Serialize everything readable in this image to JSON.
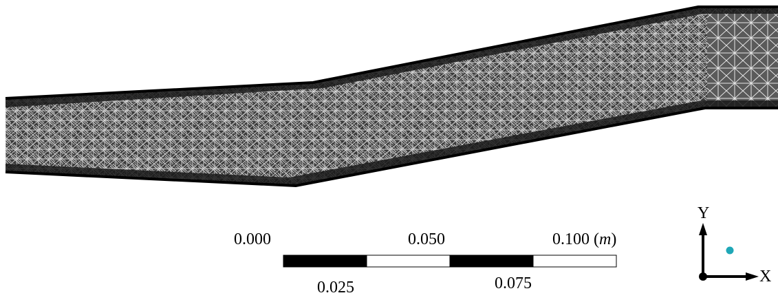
{
  "mesh": {
    "fill_color": "#3a3a3a",
    "line_color": "#d9d9d9",
    "wall_color": "#000000",
    "background": "#ffffff"
  },
  "scale_bar": {
    "top_labels": [
      "0.000",
      "0.050",
      "0.100"
    ],
    "unit_open": "(",
    "unit": "m",
    "unit_close": ")",
    "bottom_labels": [
      "0.025",
      "0.075"
    ],
    "segment_colors": [
      "#000000",
      "#ffffff",
      "#000000",
      "#ffffff"
    ]
  },
  "axes": {
    "x_label": "X",
    "y_label": "Y",
    "arrow_color": "#000000",
    "marker_color": "#1fa7b7"
  }
}
